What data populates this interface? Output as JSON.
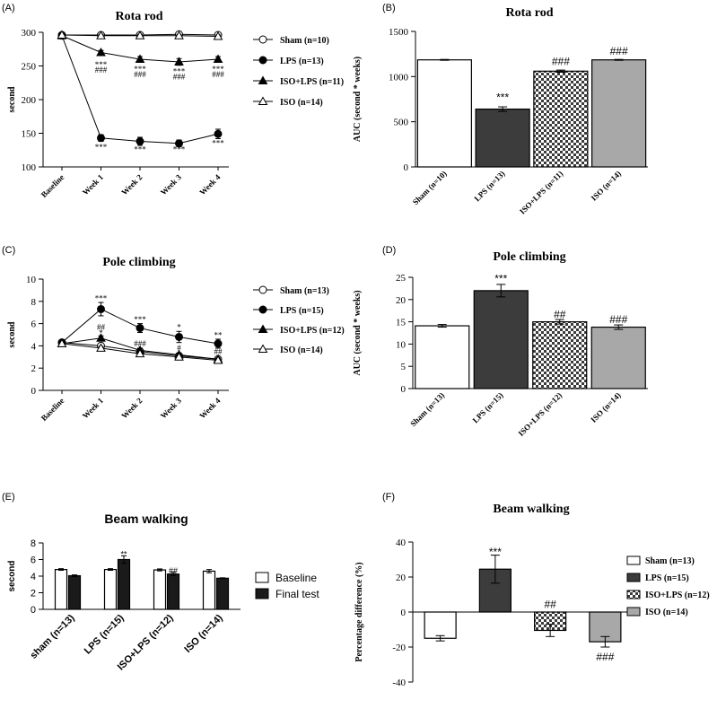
{
  "chart_data": [
    {
      "id": "A",
      "panel_label": "(A)",
      "type": "line",
      "title": "Rota rod",
      "ylabel": "second",
      "ylim": [
        100,
        300
      ],
      "yticks": [
        100,
        150,
        200,
        250,
        300
      ],
      "categories": [
        "Baseline",
        "Week 1",
        "Week 2",
        "Week 3",
        "Week 4"
      ],
      "series": [
        {
          "name": "Sham (n=10)",
          "marker": "circle-open",
          "values": [
            296,
            296,
            296,
            297,
            296
          ],
          "errors": [
            2,
            2,
            2,
            2,
            2
          ]
        },
        {
          "name": "LPS (n=13)",
          "marker": "circle-filled",
          "values": [
            295,
            143,
            138,
            135,
            149
          ],
          "errors": [
            3,
            5,
            6,
            5,
            7
          ]
        },
        {
          "name": "ISO+LPS (n=11)",
          "marker": "triangle-filled",
          "values": [
            295,
            270,
            260,
            256,
            260
          ],
          "errors": [
            3,
            3,
            4,
            5,
            4
          ]
        },
        {
          "name": "ISO (n=14)",
          "marker": "triangle-open",
          "values": [
            296,
            295,
            295,
            295,
            294
          ],
          "errors": [
            2,
            2,
            2,
            2,
            2
          ]
        }
      ],
      "annotations": [
        {
          "text": "***",
          "category": 1,
          "value": 251
        },
        {
          "text": "###",
          "category": 1,
          "value": 243
        },
        {
          "text": "***",
          "category": 2,
          "value": 244
        },
        {
          "text": "###",
          "category": 2,
          "value": 236
        },
        {
          "text": "***",
          "category": 3,
          "value": 241
        },
        {
          "text": "###",
          "category": 3,
          "value": 233
        },
        {
          "text": "***",
          "category": 4,
          "value": 244
        },
        {
          "text": "###",
          "category": 4,
          "value": 236
        },
        {
          "text": "***",
          "category": 1,
          "value": 128
        },
        {
          "text": "***",
          "category": 2,
          "value": 125
        },
        {
          "text": "***",
          "category": 3,
          "value": 125
        },
        {
          "text": "***",
          "category": 4,
          "value": 134
        }
      ]
    },
    {
      "id": "B",
      "panel_label": "(B)",
      "type": "bar",
      "title": "Rota rod",
      "ylabel": "AUC (second * weeks)",
      "ylim": [
        0,
        1500
      ],
      "yticks": [
        0,
        500,
        1000,
        1500
      ],
      "categories": [
        "Sham (n=10)",
        "LPS (n=13)",
        "ISO+LPS (n=11)",
        "ISO (n=14)"
      ],
      "values": [
        1185,
        640,
        1060,
        1185
      ],
      "errors": [
        5,
        25,
        12,
        5
      ],
      "fills": [
        "white",
        "dark",
        "check",
        "gray"
      ],
      "annotations": [
        {
          "text": "***",
          "category": 1,
          "value": 760
        },
        {
          "text": "###",
          "category": 2,
          "value": 1160
        },
        {
          "text": "###",
          "category": 3,
          "value": 1275
        }
      ]
    },
    {
      "id": "C",
      "panel_label": "(C)",
      "type": "line",
      "title": "Pole climbing",
      "ylabel": "second",
      "ylim": [
        0,
        10
      ],
      "yticks": [
        0,
        2,
        4,
        6,
        8,
        10
      ],
      "categories": [
        "Baseline",
        "Week 1",
        "Week 2",
        "Week 3",
        "Week 4"
      ],
      "series": [
        {
          "name": "Sham (n=13)",
          "marker": "circle-open",
          "values": [
            4.3,
            4.0,
            3.5,
            3.1,
            2.8
          ],
          "errors": [
            0.15,
            0.15,
            0.15,
            0.12,
            0.1
          ]
        },
        {
          "name": "LPS (n=15)",
          "marker": "circle-filled",
          "values": [
            4.3,
            7.3,
            5.6,
            4.8,
            4.2
          ],
          "errors": [
            0.2,
            0.6,
            0.4,
            0.5,
            0.4
          ]
        },
        {
          "name": "ISO+LPS (n=12)",
          "marker": "triangle-filled",
          "values": [
            4.2,
            4.7,
            3.6,
            3.2,
            2.8
          ],
          "errors": [
            0.15,
            0.2,
            0.2,
            0.15,
            0.1
          ]
        },
        {
          "name": "ISO (n=14)",
          "marker": "triangle-open",
          "values": [
            4.2,
            3.8,
            3.3,
            3.0,
            2.7
          ],
          "errors": [
            0.15,
            0.15,
            0.15,
            0.12,
            0.1
          ]
        }
      ],
      "annotations": [
        {
          "text": "***",
          "category": 1,
          "value": 8.2
        },
        {
          "text": "##",
          "category": 1,
          "value": 5.6
        },
        {
          "text": "*",
          "category": 1,
          "value": 5.1
        },
        {
          "text": "***",
          "category": 2,
          "value": 6.3
        },
        {
          "text": "###",
          "category": 2,
          "value": 4.1
        },
        {
          "text": "*",
          "category": 3,
          "value": 5.6
        },
        {
          "text": "#",
          "category": 3,
          "value": 3.7
        },
        {
          "text": "**",
          "category": 4,
          "value": 4.9
        },
        {
          "text": "##",
          "category": 4,
          "value": 3.4
        }
      ]
    },
    {
      "id": "D",
      "panel_label": "(D)",
      "type": "bar",
      "title": "Pole climbing",
      "ylabel": "AUC (second * weeks)",
      "ylim": [
        0,
        25
      ],
      "yticks": [
        0,
        5,
        10,
        15,
        20,
        25
      ],
      "categories": [
        "Sham (n=13)",
        "LPS (n=15)",
        "ISO+LPS (n=12)",
        "ISO (n=14)"
      ],
      "values": [
        14.1,
        22.0,
        15.0,
        13.8
      ],
      "errors": [
        0.3,
        1.4,
        0.5,
        0.5
      ],
      "fills": [
        "white",
        "dark",
        "check",
        "gray"
      ],
      "annotations": [
        {
          "text": "***",
          "category": 1,
          "value": 24.5
        },
        {
          "text": "##",
          "category": 2,
          "value": 16.5
        },
        {
          "text": "###",
          "category": 3,
          "value": 15.4
        }
      ]
    },
    {
      "id": "E",
      "panel_label": "(E)",
      "type": "bar",
      "title": "Beam walking",
      "ylabel": "second",
      "ylim": [
        0,
        8
      ],
      "yticks": [
        0,
        2,
        4,
        6,
        8
      ],
      "categories": [
        "sham (n=13)",
        "LPS (n=15)",
        "ISO+LPS (n=12)",
        "ISO (n=14)"
      ],
      "series": [
        {
          "name": "Baseline",
          "fill": "white",
          "values": [
            4.8,
            4.8,
            4.75,
            4.6
          ],
          "errors": [
            0.1,
            0.1,
            0.12,
            0.2
          ]
        },
        {
          "name": "Final test",
          "fill": "black",
          "values": [
            4.05,
            6.0,
            4.25,
            3.75
          ],
          "errors": [
            0.1,
            0.45,
            0.2,
            0.05
          ]
        }
      ],
      "annotations": [
        {
          "text": "**",
          "category": 1,
          "series": 1,
          "value": 6.6
        },
        {
          "text": "##",
          "category": 2,
          "series": 1,
          "value": 4.6
        }
      ]
    },
    {
      "id": "F",
      "panel_label": "(F)",
      "type": "bar",
      "title": "Beam walking",
      "ylabel": "Percentage difference (%)",
      "ylim": [
        -40,
        40
      ],
      "yticks": [
        -40,
        -20,
        0,
        20,
        40
      ],
      "categories": [
        "Sham (n=13)",
        "LPS (n=15)",
        "ISO+LPS (n=12)",
        "ISO (n=14)"
      ],
      "values": [
        -15,
        24.5,
        -10.5,
        -17
      ],
      "errors": [
        1.5,
        8,
        3.5,
        3
      ],
      "fills": [
        "white",
        "dark",
        "check",
        "gray"
      ],
      "annotations": [
        {
          "text": "***",
          "category": 1,
          "value": 34
        },
        {
          "text": "##",
          "category": 2,
          "value": 4
        },
        {
          "text": "###",
          "category": 3,
          "value": -26
        }
      ]
    }
  ]
}
